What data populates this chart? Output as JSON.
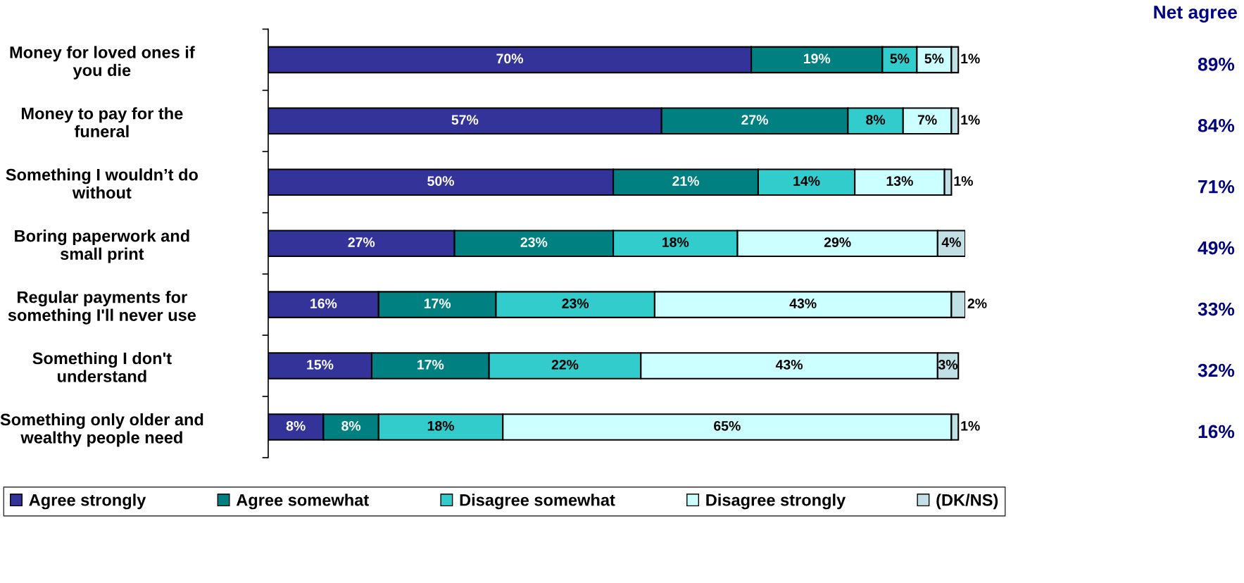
{
  "chart_data": {
    "type": "bar",
    "orientation": "horizontal",
    "stacked": true,
    "data_labels": true,
    "grid": false,
    "legend": "bottom",
    "categories": [
      "Money for loved ones if\nyou die",
      "Money to pay for the\nfuneral",
      "Something I wouldn’t do\nwithout",
      "Boring paperwork and\nsmall print",
      "Regular payments for\nsomething I'll never use",
      "Something I don't\nunderstand",
      "Something only older and\nwealthy people need"
    ],
    "series": [
      {
        "name": "Agree strongly",
        "color": "#333399",
        "values": [
          70,
          57,
          50,
          27,
          16,
          15,
          8
        ],
        "value_labels": [
          "70%",
          "57%",
          "50%",
          "27%",
          "16%",
          "15%",
          "8%"
        ]
      },
      {
        "name": "Agree somewhat",
        "color": "#008080",
        "values": [
          19,
          27,
          21,
          23,
          17,
          17,
          8
        ],
        "value_labels": [
          "19%",
          "27%",
          "21%",
          "23%",
          "17%",
          "17%",
          "8%"
        ]
      },
      {
        "name": "Disagree somewhat",
        "color": "#33cccc",
        "values": [
          5,
          8,
          14,
          18,
          23,
          22,
          18
        ],
        "value_labels": [
          "5%",
          "8%",
          "14%",
          "18%",
          "23%",
          "22%",
          "18%"
        ]
      },
      {
        "name": "Disagree strongly",
        "color": "#ccffff",
        "values": [
          5,
          7,
          13,
          29,
          43,
          43,
          65
        ],
        "value_labels": [
          "5%",
          "7%",
          "13%",
          "29%",
          "43%",
          "43%",
          "65%"
        ]
      },
      {
        "name": "(DK/NS)",
        "color": "#c0e0e6",
        "values": [
          1,
          1,
          1,
          4,
          2,
          3,
          1
        ],
        "value_labels": [
          "1%",
          "1%",
          "1%",
          "4%",
          "2%",
          "3%",
          "1%"
        ]
      }
    ],
    "annotations": [
      "Net agree",
      "89%",
      "84%",
      "71%",
      "49%",
      "33%",
      "32%",
      "16%"
    ]
  }
}
